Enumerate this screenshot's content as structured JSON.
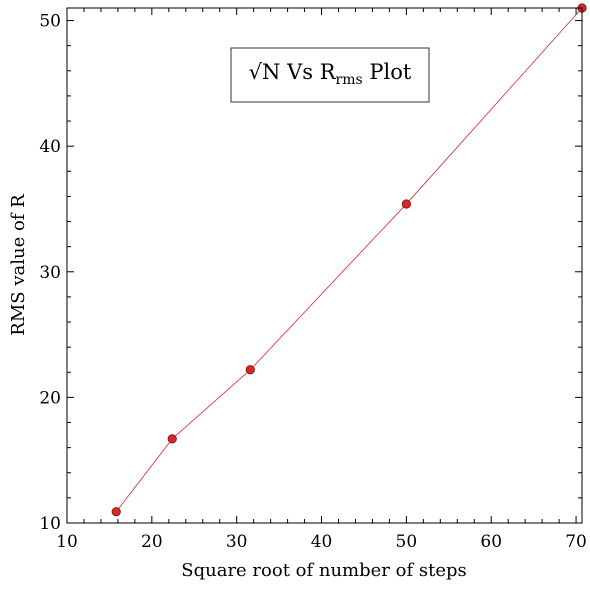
{
  "chart_data": {
    "type": "line",
    "title": "√N Vs R",
    "title_subscript": "rms",
    "title_suffix": " Plot",
    "xlabel": "Square root of number of steps",
    "ylabel": "RMS value of R",
    "xlim": [
      10,
      70.7
    ],
    "ylim": [
      10,
      51
    ],
    "xticks": [
      10,
      20,
      30,
      40,
      50,
      60,
      70
    ],
    "yticks": [
      10,
      20,
      30,
      40,
      50
    ],
    "grid": false,
    "series": [
      {
        "color": "#d62728",
        "x": [
          15.8,
          22.4,
          31.6,
          50.0,
          70.7
        ],
        "y": [
          10.9,
          16.7,
          22.2,
          35.4,
          51.0
        ]
      }
    ]
  }
}
